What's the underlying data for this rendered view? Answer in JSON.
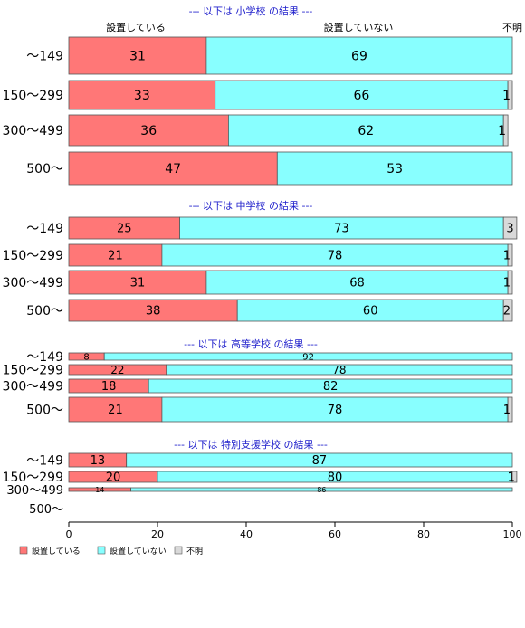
{
  "chart_data": {
    "type": "bar",
    "orientation": "horizontal",
    "stacked": true,
    "xlim": [
      0,
      100
    ],
    "x_ticks": [
      0,
      20,
      40,
      60,
      80,
      100
    ],
    "grid": false,
    "legend_position": "bottom-left",
    "colors": {
      "設置している": "#ff7777",
      "設置していない": "#88ffff",
      "不明": "#d9d9d9"
    },
    "column_headers": [
      "設置している",
      "設置していない",
      "不明"
    ],
    "legend": [
      "設置している",
      "設置していない",
      "不明"
    ],
    "groups": [
      {
        "title": "--- 以下は 小学校 の結果 ---",
        "categories": [
          "〜149",
          "150〜299",
          "300〜499",
          "500〜"
        ],
        "series": [
          {
            "name": "設置している",
            "values": [
              31,
              33,
              36,
              47
            ]
          },
          {
            "name": "設置していない",
            "values": [
              69,
              66,
              62,
              53
            ]
          },
          {
            "name": "不明",
            "values": [
              0,
              1,
              1,
              0
            ]
          }
        ]
      },
      {
        "title": "--- 以下は 中学校 の結果 ---",
        "categories": [
          "〜149",
          "150〜299",
          "300〜499",
          "500〜"
        ],
        "series": [
          {
            "name": "設置している",
            "values": [
              25,
              21,
              31,
              38
            ]
          },
          {
            "name": "設置していない",
            "values": [
              73,
              78,
              68,
              60
            ]
          },
          {
            "name": "不明",
            "values": [
              3,
              1,
              1,
              2
            ]
          }
        ]
      },
      {
        "title": "--- 以下は 高等学校 の結果 ---",
        "categories": [
          "〜149",
          "150〜299",
          "300〜499",
          "500〜"
        ],
        "series": [
          {
            "name": "設置している",
            "values": [
              8,
              22,
              18,
              21
            ]
          },
          {
            "name": "設置していない",
            "values": [
              92,
              78,
              82,
              78
            ]
          },
          {
            "name": "不明",
            "values": [
              0,
              0,
              0,
              1
            ]
          }
        ]
      },
      {
        "title": "--- 以下は 特別支援学校 の結果 ---",
        "categories": [
          "〜149",
          "150〜299",
          "300〜499",
          "500〜"
        ],
        "series": [
          {
            "name": "設置している",
            "values": [
              13,
              20,
              14,
              null
            ]
          },
          {
            "name": "設置していない",
            "values": [
              87,
              80,
              86,
              null
            ]
          },
          {
            "name": "不明",
            "values": [
              0,
              1,
              0,
              null
            ]
          }
        ]
      }
    ]
  }
}
